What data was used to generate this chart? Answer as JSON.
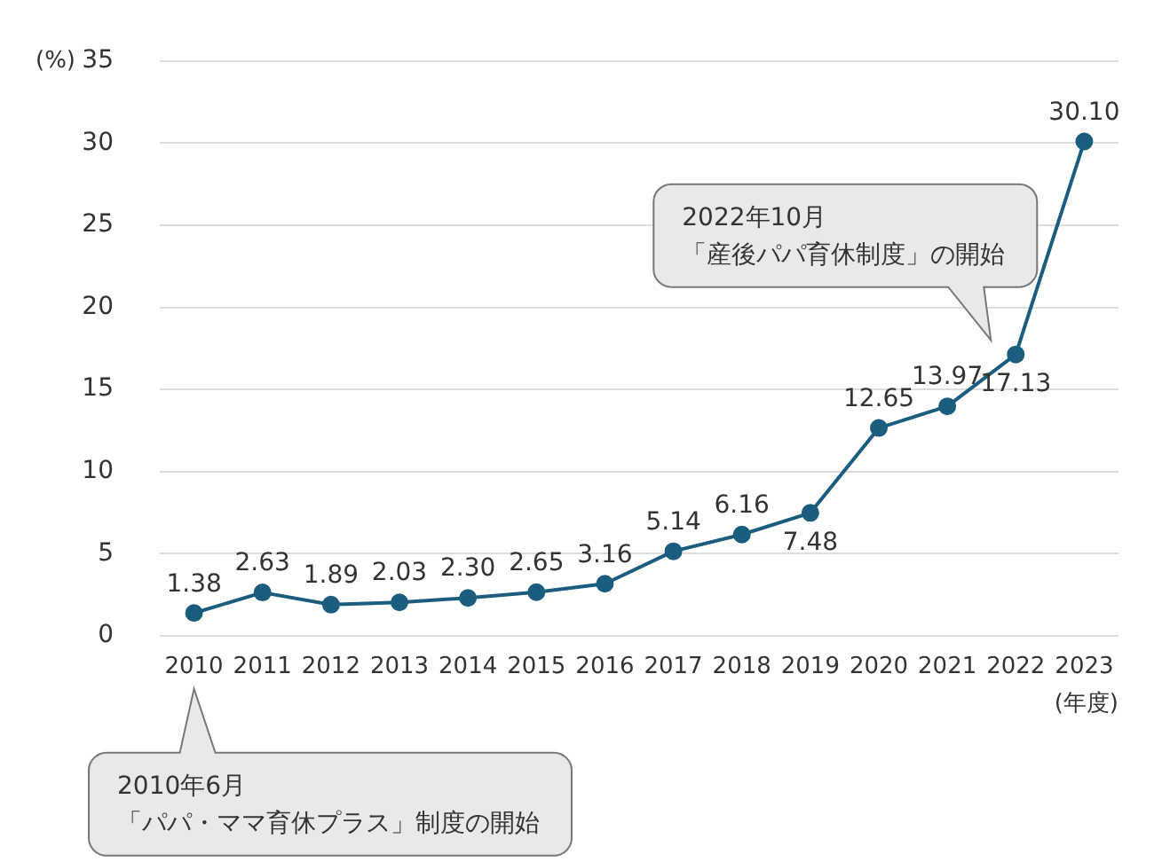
{
  "chart_data": {
    "type": "line",
    "xlabel": "(年度)",
    "ylabel": "(%)",
    "categories": [
      "2010",
      "2011",
      "2012",
      "2013",
      "2014",
      "2015",
      "2016",
      "2017",
      "2018",
      "2019",
      "2020",
      "2021",
      "2022",
      "2023"
    ],
    "values": [
      1.38,
      2.63,
      1.89,
      2.03,
      2.3,
      2.65,
      3.16,
      5.14,
      6.16,
      7.48,
      12.65,
      13.97,
      17.13,
      30.1
    ],
    "value_labels": [
      "1.38",
      "2.63",
      "1.89",
      "2.03",
      "2.30",
      "2.65",
      "3.16",
      "5.14",
      "6.16",
      "7.48",
      "12.65",
      "13.97",
      "17.13",
      "30.10"
    ],
    "color": "#1b5d7e",
    "marker": "circle",
    "grid": "y",
    "ylim": [
      0,
      35
    ],
    "yticks": [
      0,
      5,
      10,
      15,
      20,
      25,
      30,
      35
    ],
    "annotations": [
      "2010年6月「パパ・ママ育休プラス」制度の開始",
      "2022年10月「産後パパ育休制度」の開始"
    ]
  }
}
